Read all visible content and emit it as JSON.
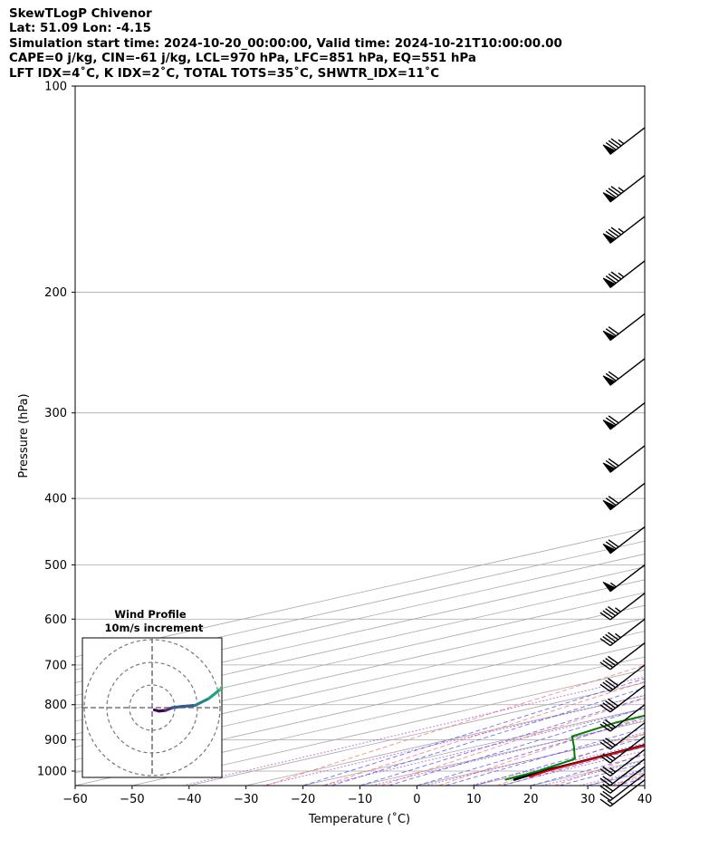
{
  "header": {
    "line1": "SkewTLogP Chivenor",
    "line2": "Lat: 51.09   Lon: -4.15",
    "line3": "Simulation start time: 2024-10-20_00:00:00, Valid time: 2024-10-21T10:00:00.00",
    "line4": "CAPE=0 j/kg, CIN=-61 j/kg, LCL=970 hPa, LFC=851 hPa, EQ=551 hPa",
    "line5": "LFT IDX=4˚C, K IDX=2˚C, TOTAL TOTS=35˚C, SHWTR_IDX=11˚C"
  },
  "colors": {
    "temperature": "#e00000",
    "dewpoint": "#008000",
    "parcel": "#000000",
    "cape_fill": "#a0c4de",
    "dry_adiabat": "#ff6a6a",
    "moist_adiabat": "#4a4aff",
    "mixing_ratio": "#9a30c8",
    "isotherm": "#a8a8a8"
  },
  "chart_data": {
    "type": "skewt",
    "xlabel": "Temperature (˚C)",
    "ylabel": "Pressure (hPa)",
    "xlim": [
      -60,
      40
    ],
    "ylim": [
      1050,
      100
    ],
    "x_ticks": [
      "−60",
      "−50",
      "−40",
      "−30",
      "−20",
      "−10",
      "0",
      "10",
      "20",
      "30",
      "40"
    ],
    "x_tick_values": [
      -60,
      -50,
      -40,
      -30,
      -20,
      -10,
      0,
      10,
      20,
      30,
      40
    ],
    "y_ticks": [
      "100",
      "200",
      "300",
      "400",
      "500",
      "600",
      "700",
      "800",
      "900",
      "1000"
    ],
    "y_tick_values": [
      100,
      200,
      300,
      400,
      500,
      600,
      700,
      800,
      900,
      1000
    ],
    "temperature_profile": [
      [
        1020,
        13
      ],
      [
        1000,
        11.5
      ],
      [
        950,
        9.8
      ],
      [
        900,
        8.3
      ],
      [
        850,
        6.9
      ],
      [
        800,
        5.3
      ],
      [
        750,
        3.5
      ],
      [
        700,
        1.6
      ],
      [
        650,
        -0.5
      ],
      [
        600,
        -2.7
      ],
      [
        551,
        -5.0
      ],
      [
        520,
        -5.0
      ],
      [
        500,
        -5.2
      ],
      [
        470,
        -6.5
      ],
      [
        440,
        -9.2
      ],
      [
        400,
        -13.5
      ],
      [
        360,
        -18.2
      ],
      [
        330,
        -24.5
      ],
      [
        300,
        -30.5
      ],
      [
        270,
        -35.5
      ],
      [
        250,
        -40.5
      ],
      [
        230,
        -45.0
      ],
      [
        210,
        -49.5
      ],
      [
        190,
        -55.5
      ],
      [
        170,
        -61.0
      ],
      [
        150,
        -66.0
      ],
      [
        130,
        -71.0
      ],
      [
        115,
        -73.0
      ],
      [
        100,
        -75.5
      ]
    ],
    "dewpoint_profile": [
      [
        1030,
        11
      ],
      [
        1000,
        10
      ],
      [
        960,
        7
      ],
      [
        920,
        -3
      ],
      [
        890,
        -11
      ],
      [
        850,
        -14
      ],
      [
        800,
        -15
      ],
      [
        760,
        -14
      ],
      [
        730,
        -13.5
      ],
      [
        680,
        -14
      ],
      [
        640,
        -17
      ],
      [
        600,
        -21
      ],
      [
        520,
        -25
      ],
      [
        480,
        -41
      ],
      [
        450,
        -41
      ],
      [
        420,
        -38
      ],
      [
        385,
        -21
      ],
      [
        360,
        -19.5
      ],
      [
        335,
        -24
      ],
      [
        300,
        -30
      ],
      [
        260,
        -36
      ],
      [
        230,
        -42
      ],
      [
        210,
        -48.5
      ],
      [
        195,
        -52.5
      ],
      [
        170,
        -62.5
      ],
      [
        140,
        -73
      ],
      [
        120,
        -79
      ],
      [
        100,
        -85
      ]
    ],
    "parcel_profile": [
      [
        1030,
        12.5
      ],
      [
        1000,
        10.8
      ],
      [
        970,
        10.2
      ],
      [
        900,
        8.0
      ],
      [
        851,
        6.3
      ],
      [
        800,
        4.3
      ],
      [
        750,
        2.0
      ],
      [
        700,
        -0.5
      ],
      [
        650,
        -3.3
      ],
      [
        600,
        -6.5
      ],
      [
        551,
        -10.2
      ],
      [
        500,
        -14.5
      ],
      [
        450,
        -19.5
      ],
      [
        400,
        -25.5
      ],
      [
        350,
        -33.0
      ],
      [
        300,
        -42.0
      ],
      [
        250,
        -53.0
      ],
      [
        200,
        -67.0
      ],
      [
        150,
        -87.0
      ],
      [
        100,
        -116.0
      ]
    ],
    "wind_barbs_kt": [
      [
        1030,
        15
      ],
      [
        1010,
        20
      ],
      [
        985,
        20
      ],
      [
        960,
        20
      ],
      [
        930,
        25
      ],
      [
        890,
        25
      ],
      [
        850,
        30
      ],
      [
        800,
        30
      ],
      [
        750,
        40
      ],
      [
        700,
        40
      ],
      [
        650,
        40
      ],
      [
        600,
        45
      ],
      [
        550,
        45
      ],
      [
        500,
        55
      ],
      [
        440,
        70
      ],
      [
        380,
        70
      ],
      [
        335,
        70
      ],
      [
        290,
        70
      ],
      [
        250,
        70
      ],
      [
        215,
        70
      ],
      [
        180,
        85
      ],
      [
        155,
        85
      ],
      [
        135,
        85
      ],
      [
        115,
        85
      ]
    ],
    "inset": {
      "title": "Wind Profile",
      "subtitle": "10m/s increment",
      "hodograph": [
        [
          1,
          -1
        ],
        [
          3,
          -1.5
        ],
        [
          6,
          -1.2
        ],
        [
          9,
          0
        ],
        [
          13,
          0.5
        ],
        [
          19,
          1
        ],
        [
          25,
          4
        ],
        [
          30,
          8
        ],
        [
          33,
          12
        ],
        [
          36,
          17
        ],
        [
          37,
          22
        ],
        [
          38,
          27
        ]
      ]
    }
  }
}
